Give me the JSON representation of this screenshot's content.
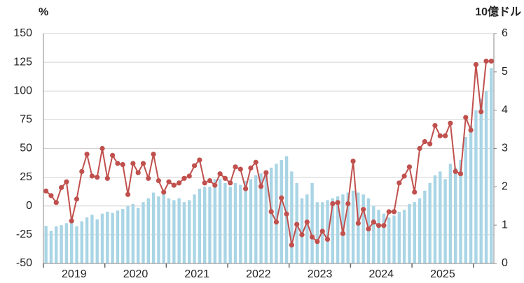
{
  "chart_data": {
    "type": "bar-line",
    "y_label": "%",
    "y2_label": "10億ドル",
    "categories": [
      null,
      null,
      null,
      null,
      null,
      null,
      "2019",
      null,
      null,
      null,
      null,
      null,
      null,
      null,
      null,
      null,
      null,
      null,
      "2020",
      null,
      null,
      null,
      null,
      null,
      null,
      null,
      null,
      null,
      null,
      null,
      "2021",
      null,
      null,
      null,
      null,
      null,
      null,
      null,
      null,
      null,
      null,
      null,
      "2022",
      null,
      null,
      null,
      null,
      null,
      null,
      null,
      null,
      null,
      null,
      null,
      "2023",
      null,
      null,
      null,
      null,
      null,
      null,
      null,
      null,
      null,
      null,
      null,
      "2024",
      null,
      null,
      null,
      null,
      null,
      null,
      null,
      null,
      null,
      null,
      null,
      "2025",
      null,
      null,
      null,
      null,
      null,
      null,
      null,
      null,
      null
    ],
    "series": [
      {
        "name": "bars",
        "type": "bar",
        "axis": "y2",
        "color": "#a9d5e5",
        "values": [
          0.98,
          0.85,
          0.97,
          1.0,
          1.05,
          1.12,
          0.97,
          1.1,
          1.2,
          1.27,
          1.15,
          1.3,
          1.35,
          1.32,
          1.38,
          1.42,
          1.5,
          1.55,
          1.45,
          1.6,
          1.7,
          1.85,
          1.75,
          1.9,
          1.7,
          1.65,
          1.7,
          1.6,
          1.65,
          1.8,
          1.95,
          2.0,
          2.0,
          2.2,
          2.2,
          2.1,
          2.0,
          2.1,
          2.05,
          2.15,
          2.2,
          2.3,
          2.35,
          2.4,
          2.5,
          2.6,
          2.7,
          2.8,
          2.4,
          2.1,
          1.7,
          1.8,
          2.1,
          1.6,
          1.6,
          1.65,
          1.7,
          1.75,
          1.8,
          1.85,
          1.9,
          1.85,
          1.8,
          1.7,
          1.5,
          1.4,
          1.3,
          1.2,
          1.25,
          1.35,
          1.4,
          1.55,
          1.6,
          1.7,
          1.9,
          2.1,
          2.3,
          2.4,
          2.2,
          2.6,
          2.5,
          2.7,
          3.3,
          3.6,
          4.0,
          4.3,
          4.5,
          5.1
        ]
      },
      {
        "name": "line",
        "type": "line",
        "axis": "y",
        "color": "#c0504d",
        "values": [
          13,
          9,
          3,
          16,
          21,
          -13,
          6,
          30,
          45,
          26,
          25,
          50,
          24,
          44,
          37,
          36,
          10,
          37,
          29,
          37,
          24,
          45,
          22,
          12,
          21,
          18,
          20,
          24,
          26,
          35,
          40,
          20,
          22,
          18,
          28,
          24,
          20,
          34,
          32,
          15,
          33,
          38,
          17,
          29,
          -5,
          -14,
          7,
          -7,
          -34,
          -16,
          -25,
          -14,
          -27,
          -31,
          -22,
          -29,
          2,
          3,
          -24,
          2,
          39,
          -15,
          -3,
          -20,
          -14,
          -17,
          -17,
          -5,
          -5,
          20,
          26,
          34,
          12,
          50,
          56,
          54,
          70,
          61,
          61,
          72,
          30,
          28,
          77,
          66,
          123,
          82,
          126,
          126
        ]
      }
    ],
    "ylim": [
      -50,
      150
    ],
    "yticks": [
      -50,
      -25,
      0,
      25,
      50,
      75,
      100,
      125,
      150
    ],
    "y2lim": [
      0,
      6
    ],
    "y2ticks": [
      0,
      1,
      2,
      3,
      4,
      5,
      6
    ],
    "grid": true
  }
}
